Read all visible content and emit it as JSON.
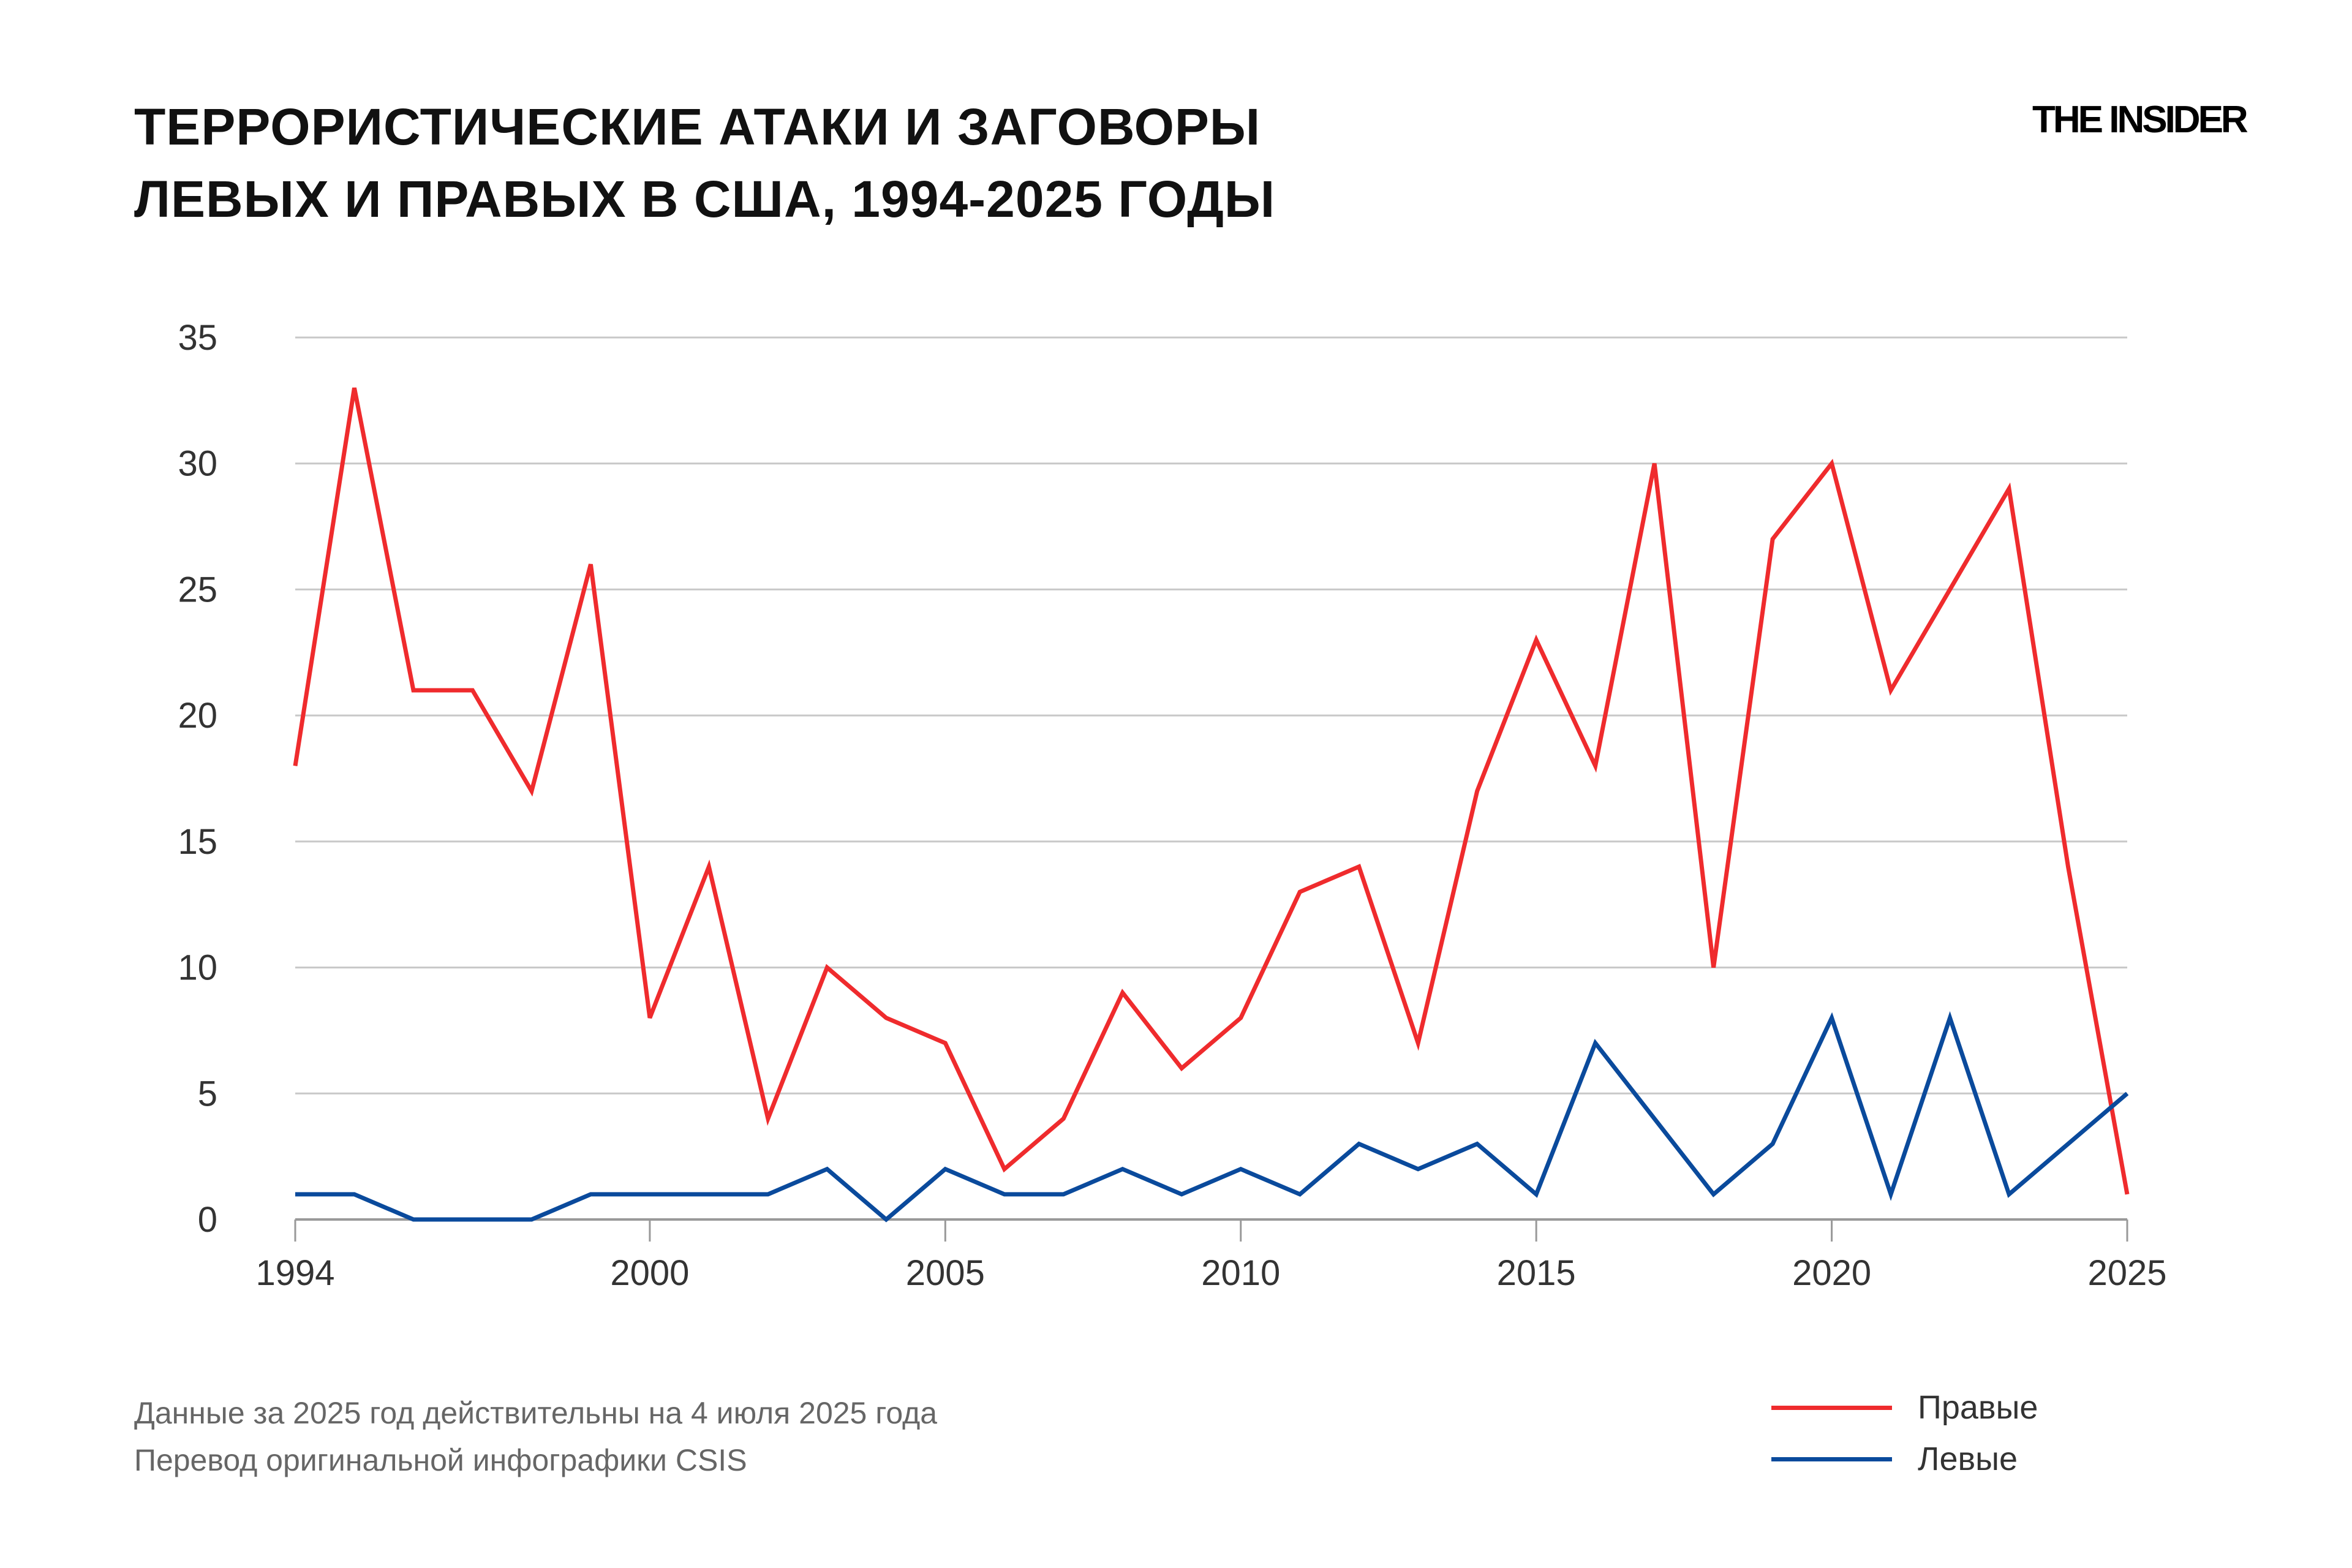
{
  "title_line1": "ТЕРРОРИСТИЧЕСКИЕ АТАКИ И ЗАГОВОРЫ",
  "title_line2": "ЛЕВЫХ И ПРАВЫХ В США, 1994-2025 ГОДЫ",
  "logo": "THE INSIDER",
  "notes": [
    "Данные за 2025 год действительны на 4 июля 2025 года",
    "Перевод оригинальной инфографики CSIS"
  ],
  "chart_data": {
    "type": "line",
    "title": "ТЕРРОРИСТИЧЕСКИЕ АТАКИ И ЗАГОВОРЫ ЛЕВЫХ И ПРАВЫХ В США, 1994-2025 ГОДЫ",
    "xlabel": "",
    "ylabel": "",
    "x": [
      1994,
      1995,
      1996,
      1997,
      1998,
      1999,
      2000,
      2001,
      2002,
      2003,
      2004,
      2005,
      2006,
      2007,
      2008,
      2009,
      2010,
      2011,
      2012,
      2013,
      2014,
      2015,
      2016,
      2017,
      2018,
      2019,
      2020,
      2021,
      2022,
      2023,
      2024,
      2025
    ],
    "xlim": [
      1994,
      2025
    ],
    "ylim": [
      0,
      35
    ],
    "x_ticks": [
      1994,
      2000,
      2005,
      2010,
      2015,
      2020,
      2025
    ],
    "y_ticks": [
      0,
      5,
      10,
      15,
      20,
      25,
      30,
      35
    ],
    "grid": "horizontal",
    "legend_position": "bottom-right",
    "series": [
      {
        "name": "Правые",
        "color": "#ef2b2d",
        "values": [
          18,
          33,
          21,
          21,
          17,
          26,
          8,
          14,
          4,
          10,
          8,
          7,
          2,
          4,
          9,
          6,
          8,
          13,
          14,
          7,
          17,
          23,
          18,
          30,
          10,
          27,
          30,
          21,
          25,
          29,
          14,
          1
        ]
      },
      {
        "name": "Левые",
        "color": "#0a4a9c",
        "values": [
          1,
          1,
          0,
          0,
          0,
          1,
          1,
          1,
          1,
          2,
          0,
          2,
          1,
          1,
          2,
          1,
          2,
          1,
          3,
          2,
          3,
          1,
          7,
          4,
          1,
          3,
          8,
          1,
          8,
          1,
          3,
          5
        ]
      }
    ]
  }
}
